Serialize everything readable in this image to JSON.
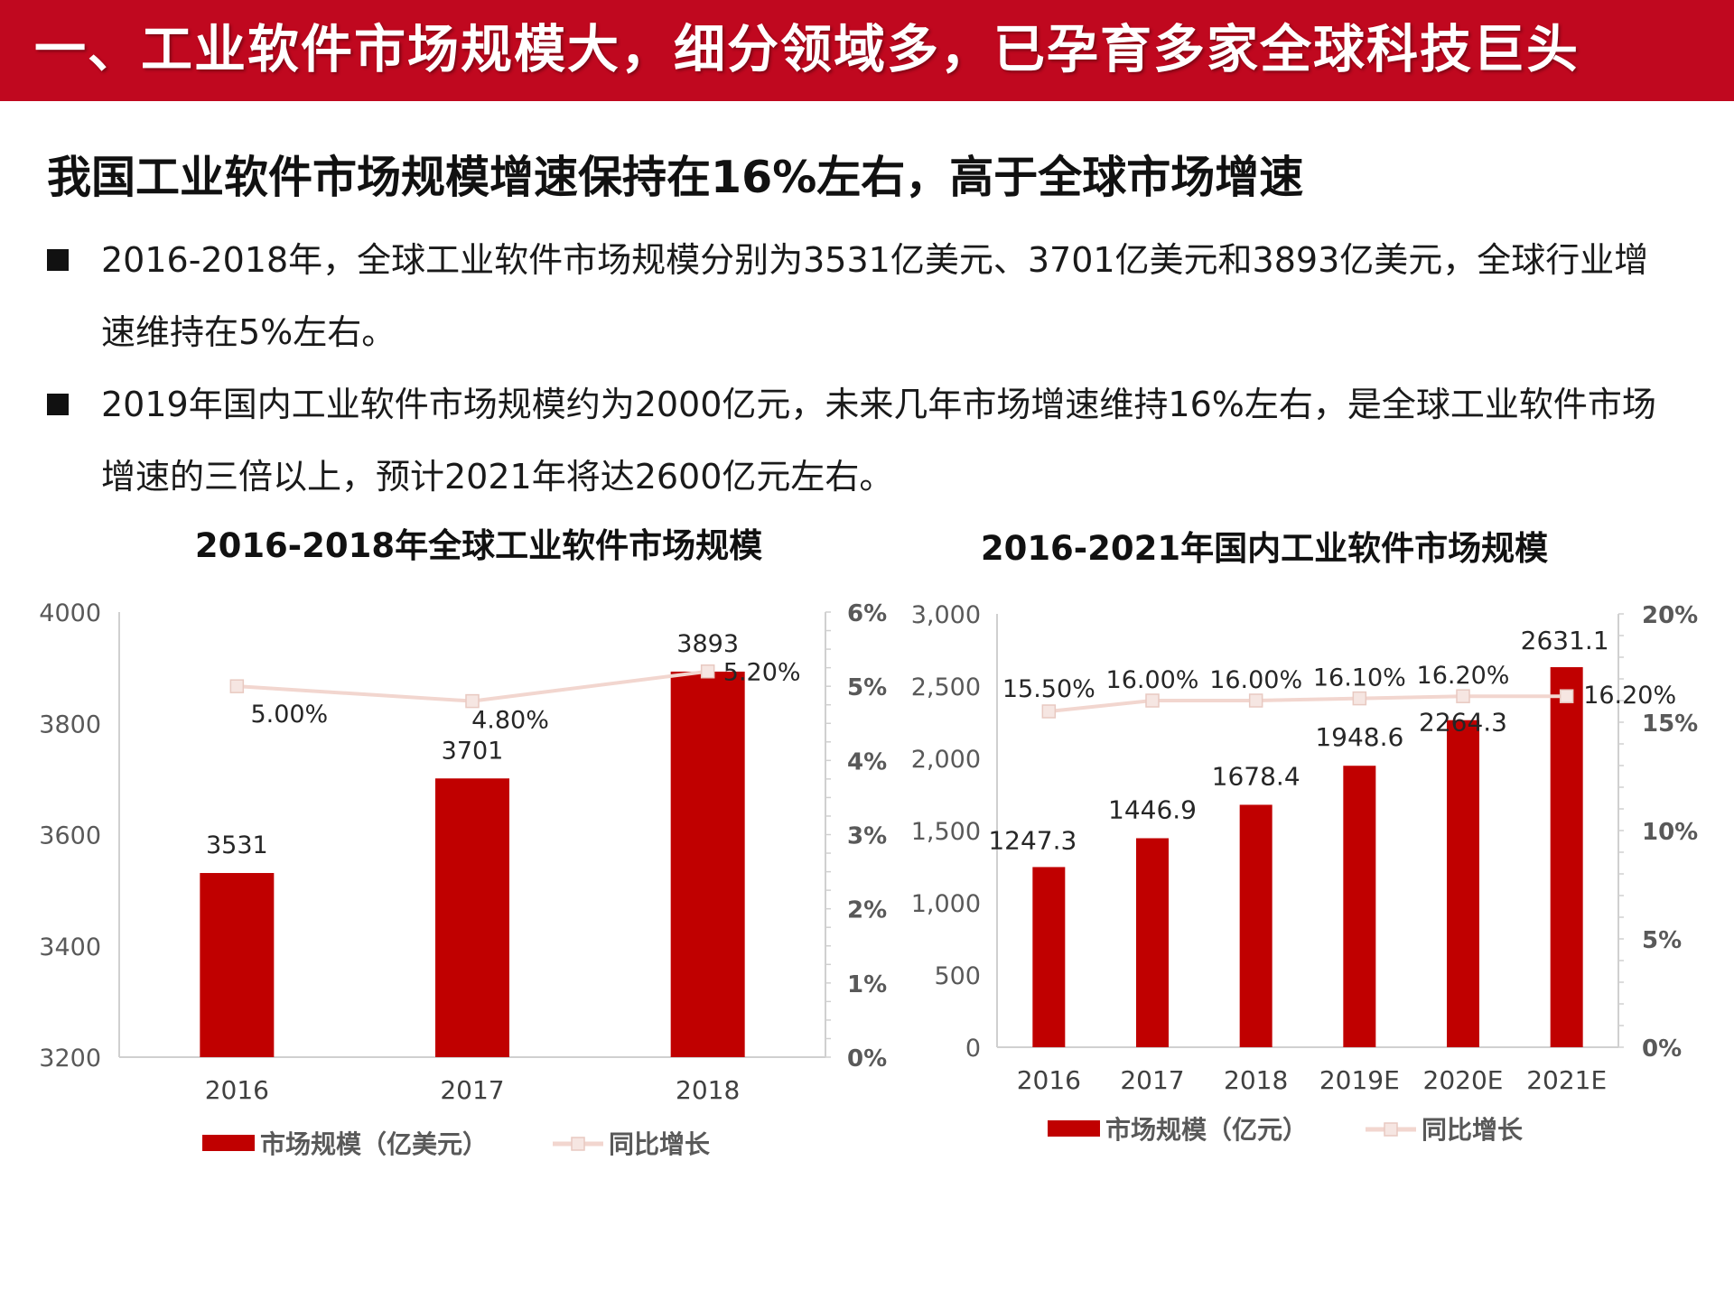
{
  "header": {
    "title": "一、工业软件市场规模大，细分领域多，已孕育多家全球科技巨头"
  },
  "subtitle": "我国工业软件市场规模增速保持在16%左右，高于全球市场增速",
  "bullets": [
    "2016-2018年，全球工业软件市场规模分别为3531亿美元、3701亿美元和3893亿美元，全球行业增速维持在5%左右。",
    "2019年国内工业软件市场规模约为2000亿元，未来几年市场增速维持16%左右，是全球工业软件市场增速的三倍以上，预计2021年将达2600亿元左右。"
  ],
  "colors": {
    "banner": "#c0081f",
    "bar": "#c00000",
    "line": "#f2d6cf",
    "marker": "#f6e6e2"
  },
  "chart_data": [
    {
      "type": "bar",
      "title": "2016-2018年全球工业软件市场规模",
      "categories": [
        "2016",
        "2017",
        "2018"
      ],
      "series": [
        {
          "name": "市场规模（亿美元）",
          "type": "bar",
          "axis": "left",
          "values": [
            3531,
            3701,
            3893
          ],
          "labels": [
            "3531",
            "3701",
            "3893"
          ]
        },
        {
          "name": "同比增长",
          "type": "line",
          "axis": "right",
          "values": [
            5.0,
            4.8,
            5.2
          ],
          "labels": [
            "5.00%",
            "4.80%",
            "5.20%"
          ]
        }
      ],
      "y_left": {
        "min": 3200,
        "max": 4000,
        "ticks": [
          3200,
          3400,
          3600,
          3800,
          4000
        ],
        "tick_labels": [
          "3200",
          "3400",
          "3600",
          "3800",
          "4000"
        ]
      },
      "y_right": {
        "min": 0,
        "max": 6,
        "ticks": [
          0,
          1,
          2,
          3,
          4,
          5,
          6
        ],
        "tick_labels": [
          "0%",
          "1%",
          "2%",
          "3%",
          "4%",
          "5%",
          "6%"
        ]
      },
      "legend": "bottom",
      "grid": false
    },
    {
      "type": "bar",
      "title": "2016-2021年国内工业软件市场规模",
      "categories": [
        "2016",
        "2017",
        "2018",
        "2019E",
        "2020E",
        "2021E"
      ],
      "series": [
        {
          "name": "市场规模（亿元）",
          "type": "bar",
          "axis": "left",
          "values": [
            1247.3,
            1446.9,
            1678.4,
            1948.6,
            2264.3,
            2631.1
          ],
          "labels": [
            "1247.3",
            "1446.9",
            "1678.4",
            "1948.6",
            "2264.3",
            "2631.1"
          ]
        },
        {
          "name": "同比增长",
          "type": "line",
          "axis": "right",
          "values": [
            15.5,
            16.0,
            16.0,
            16.1,
            16.2,
            16.2
          ],
          "labels": [
            "15.50%",
            "16.00%",
            "16.00%",
            "16.10%",
            "16.20%",
            "16.20%"
          ]
        }
      ],
      "y_left": {
        "min": 0,
        "max": 3000,
        "ticks": [
          0,
          500,
          1000,
          1500,
          2000,
          2500,
          3000
        ],
        "tick_labels": [
          "0",
          "500",
          "1,000",
          "1,500",
          "2,000",
          "2,500",
          "3,000"
        ]
      },
      "y_right": {
        "min": 0,
        "max": 20,
        "ticks": [
          0,
          5,
          10,
          15,
          20
        ],
        "tick_labels": [
          "0%",
          "5%",
          "10%",
          "15%",
          "20%"
        ]
      },
      "legend": "bottom",
      "grid": false
    }
  ]
}
